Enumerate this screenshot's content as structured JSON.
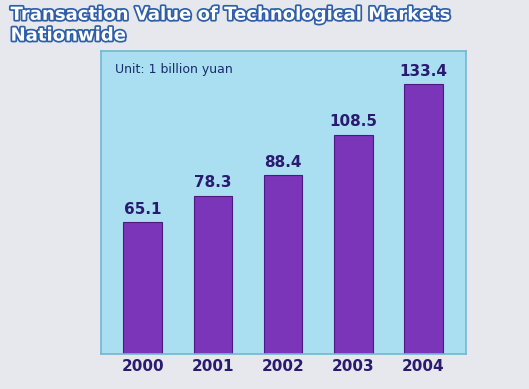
{
  "chart_data": {
    "type": "bar",
    "title": "Transaction Value of Technological Markets Nationwide",
    "annotations": [
      "Unit: 1 billion yuan"
    ],
    "categories": [
      "2000",
      "2001",
      "2002",
      "2003",
      "2004"
    ],
    "values": [
      65.1,
      78.3,
      88.4,
      108.5,
      133.4
    ],
    "color": "#7a35b8",
    "ylim": [
      0,
      150
    ],
    "data_labels": true,
    "tick_labels": "x",
    "grid": false
  }
}
